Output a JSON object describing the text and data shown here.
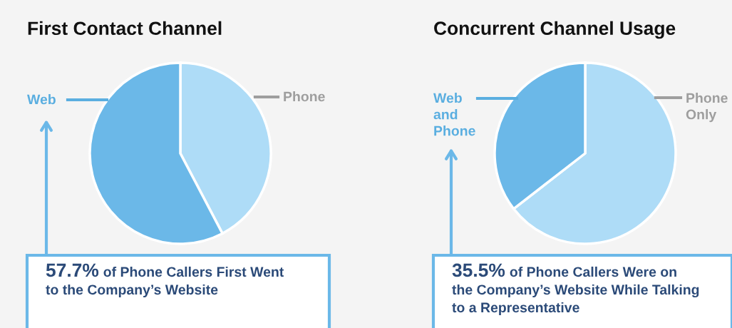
{
  "chart_data": [
    {
      "type": "pie",
      "title": "First Contact Channel",
      "categories": [
        "Phone",
        "Web"
      ],
      "values": [
        42.3,
        57.7
      ],
      "colors": [
        "#aedcf7",
        "#6bb8e8"
      ],
      "annotations": [
        "57.7% of Phone Callers First Went\nto the Company’s Website"
      ]
    },
    {
      "type": "pie",
      "title": "Concurrent Channel Usage",
      "categories": [
        "Phone Only",
        "Web and Phone"
      ],
      "values": [
        64.5,
        35.5
      ],
      "colors": [
        "#aedcf7",
        "#6bb8e8"
      ],
      "annotations": [
        "35.5% of Phone Callers Were on\nthe Company’s Website While Talking\nto a Representative"
      ]
    }
  ]
}
